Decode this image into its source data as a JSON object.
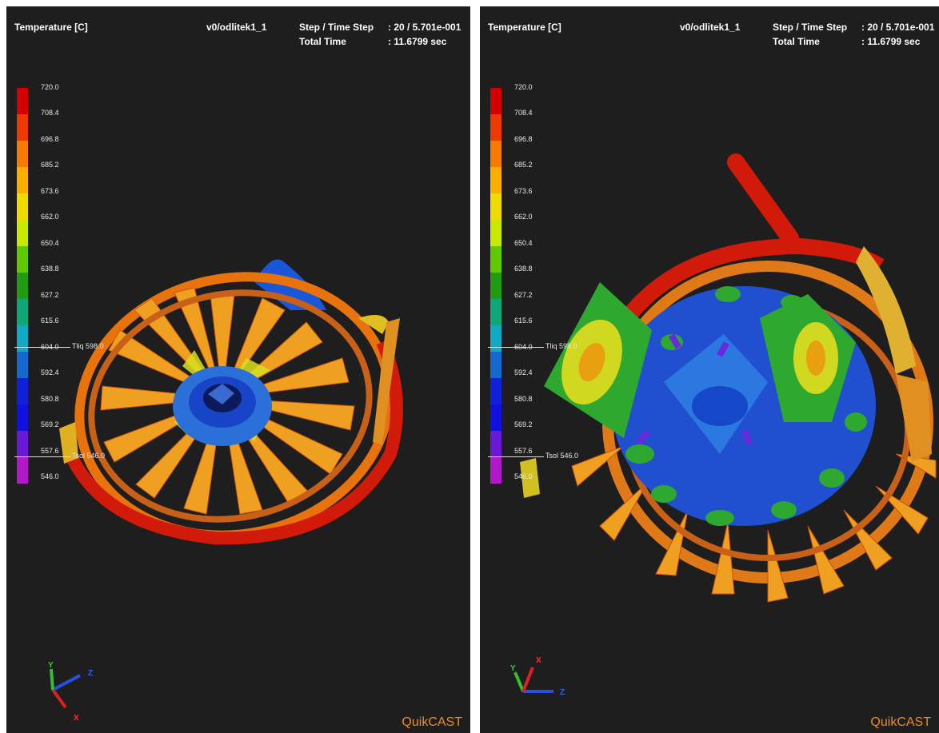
{
  "window": {
    "brand": "QuikCAST"
  },
  "panels": [
    {
      "id": "left",
      "header": {
        "title": "Temperature [C]",
        "file": "v0/odlitek1_1",
        "step_label": "Step / Time Step",
        "step_value": ": 20 / 5.701e-001",
        "time_label": "Total Time",
        "time_value": ": 11.6799 sec"
      },
      "legend": {
        "ticks": [
          "720.0",
          "708.4",
          "696.8",
          "685.2",
          "673.6",
          "662.0",
          "650.4",
          "638.8",
          "627.2",
          "615.6",
          "604.0",
          "592.4",
          "580.8",
          "569.2",
          "557.6",
          "546.0"
        ],
        "colors": [
          "#d40000",
          "#ee3a00",
          "#f77b00",
          "#fbae00",
          "#f0da00",
          "#c8ea00",
          "#62c800",
          "#1f9c12",
          "#0ea878",
          "#0eaac6",
          "#1468d2",
          "#1020d8",
          "#1010e0",
          "#6a18d8",
          "#b018c8",
          "#d020b8"
        ],
        "tliq": "Tliq 598.0",
        "tsol": "Tsol 546.0"
      },
      "axes": {
        "x": "X",
        "y": "Y",
        "z": "Z"
      }
    },
    {
      "id": "right",
      "header": {
        "title": "Temperature [C]",
        "file": "v0/odlitek1_1",
        "step_label": "Step / Time Step",
        "step_value": ": 20 / 5.701e-001",
        "time_label": "Total Time",
        "time_value": ": 11.6799 sec"
      },
      "legend": {
        "ticks": [
          "720.0",
          "708.4",
          "696.8",
          "685.2",
          "673.6",
          "662.0",
          "650.4",
          "638.8",
          "627.2",
          "615.6",
          "604.0",
          "592.4",
          "580.8",
          "569.2",
          "557.6",
          "546.0"
        ],
        "colors": [
          "#d40000",
          "#ee3a00",
          "#f77b00",
          "#fbae00",
          "#f0da00",
          "#c8ea00",
          "#62c800",
          "#1f9c12",
          "#0ea878",
          "#0eaac6",
          "#1468d2",
          "#1020d8",
          "#1010e0",
          "#6a18d8",
          "#b018c8",
          "#d020b8"
        ],
        "tliq": "Tliq 598.0",
        "tsol": "Tsol 546.0"
      },
      "axes": {
        "x": "X",
        "y": "Y",
        "z": "Z"
      }
    }
  ]
}
